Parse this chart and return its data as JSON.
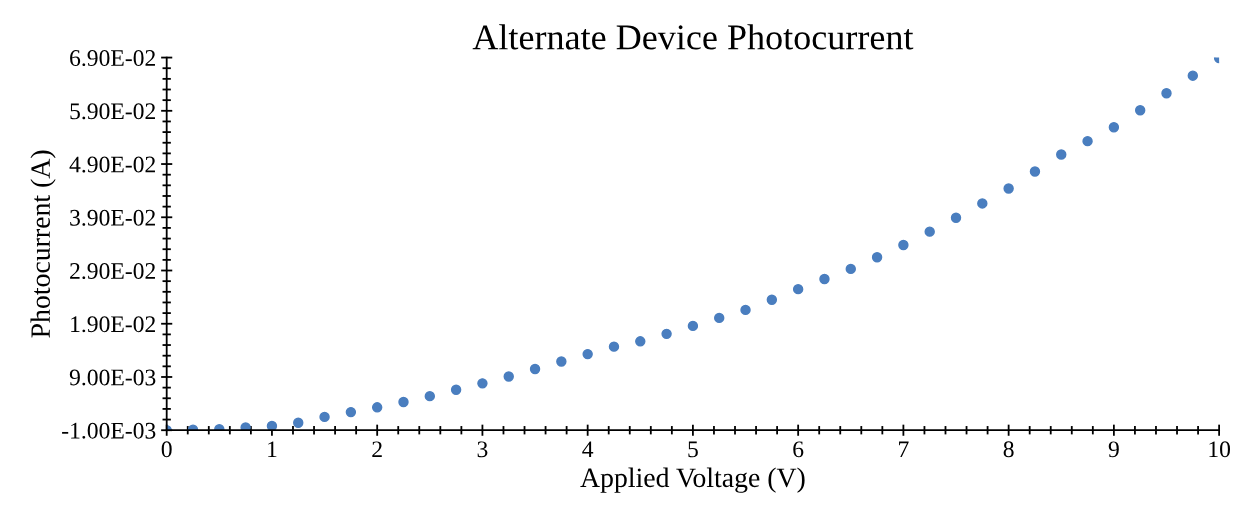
{
  "chart_data": {
    "type": "scatter",
    "title": "Alternate Device Photocurrent",
    "xlabel": "Applied Voltage (V)",
    "ylabel": "Photocurrent (A)",
    "x": [
      0,
      0.25,
      0.5,
      0.75,
      1.0,
      1.25,
      1.5,
      1.75,
      2.0,
      2.25,
      2.5,
      2.75,
      3.0,
      3.25,
      3.5,
      3.75,
      4.0,
      4.25,
      4.5,
      4.75,
      5.0,
      5.25,
      5.5,
      5.75,
      6.0,
      6.25,
      6.5,
      6.75,
      7.0,
      7.25,
      7.5,
      7.75,
      8.0,
      8.25,
      8.5,
      8.75,
      9.0,
      9.25,
      9.5,
      9.75,
      10.0
    ],
    "series": [
      {
        "color": "#4a7ebf",
        "values": [
          -0.001,
          -0.0009,
          -0.0008,
          -0.0005,
          -0.0002,
          0.0004,
          0.0015,
          0.0024,
          0.0033,
          0.0043,
          0.0054,
          0.0066,
          0.0078,
          0.0091,
          0.0105,
          0.0119,
          0.0133,
          0.0147,
          0.0157,
          0.0171,
          0.0186,
          0.0201,
          0.0216,
          0.0235,
          0.0255,
          0.0274,
          0.0293,
          0.0315,
          0.0338,
          0.0363,
          0.0389,
          0.0416,
          0.0444,
          0.0476,
          0.0508,
          0.0533,
          0.0559,
          0.0591,
          0.0623,
          0.0656,
          0.0689
        ]
      }
    ],
    "marker": "circle",
    "grid": false,
    "xlim": [
      0,
      10
    ],
    "xticks": [
      0,
      1,
      2,
      3,
      4,
      5,
      6,
      7,
      8,
      9,
      10
    ],
    "ylim": [
      -0.001,
      0.069
    ],
    "yticks": [
      {
        "value": -0.001,
        "label": "-1.00E-03"
      },
      {
        "value": 0.009,
        "label": "9.00E-03"
      },
      {
        "value": 0.019,
        "label": "1.90E-02"
      },
      {
        "value": 0.029,
        "label": "2.90E-02"
      },
      {
        "value": 0.039,
        "label": "3.90E-02"
      },
      {
        "value": 0.049,
        "label": "4.90E-02"
      },
      {
        "value": 0.059,
        "label": "5.90E-02"
      },
      {
        "value": 0.069,
        "label": "6.90E-02"
      }
    ]
  }
}
